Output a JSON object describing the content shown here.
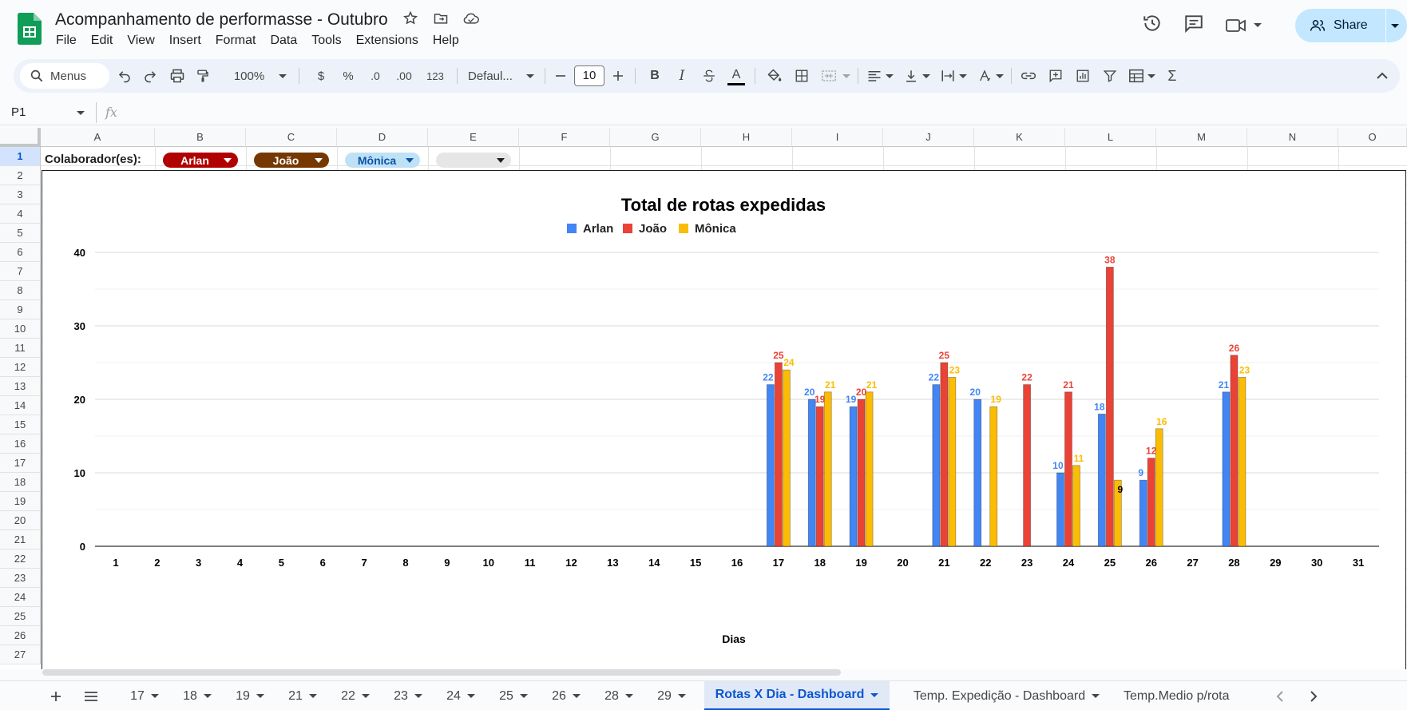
{
  "app": {
    "title": "Acompanhamento de performasse - Outubro",
    "menu": [
      "File",
      "Edit",
      "View",
      "Insert",
      "Format",
      "Data",
      "Tools",
      "Extensions",
      "Help"
    ],
    "share_label": "Share"
  },
  "toolbar": {
    "search_label": "Menus",
    "zoom": "100%",
    "currency": "$",
    "percent": "%",
    "dec_decrease": ".0",
    "dec_increase": ".00",
    "number_format": "123",
    "font": "Defaul...",
    "font_size": "10",
    "bold": "B",
    "italic": "I",
    "text_color_letter": "A",
    "sigma": "Σ"
  },
  "formula_bar": {
    "cell_ref": "P1",
    "fx": "fx"
  },
  "grid": {
    "columns": [
      "A",
      "B",
      "C",
      "D",
      "E",
      "F",
      "G",
      "H",
      "I",
      "J",
      "K",
      "L",
      "M",
      "N",
      "O"
    ],
    "rows": [
      "1",
      "2",
      "3",
      "4",
      "5",
      "6",
      "7",
      "8",
      "9",
      "10",
      "11",
      "12",
      "13",
      "14",
      "15",
      "16",
      "17",
      "18",
      "19",
      "20",
      "21",
      "22",
      "23",
      "24",
      "25",
      "26",
      "27"
    ],
    "collaborator_label": "Colaborador(es):",
    "chips": [
      {
        "label": "Arlan",
        "bg": "#b10202",
        "fg": "#ffffff"
      },
      {
        "label": "João",
        "bg": "#753800",
        "fg": "#ffffff"
      },
      {
        "label": "Mônica",
        "bg": "#bfe1f6",
        "fg": "#0a53a8"
      },
      {
        "label": "",
        "bg": "#e6e6e6",
        "fg": "#1f1f1f"
      }
    ]
  },
  "chart_data": {
    "type": "bar",
    "title": "Total de rotas expedidas",
    "xlabel": "Dias",
    "ylabel": "",
    "ylim": [
      0,
      40
    ],
    "yticks": [
      0,
      10,
      20,
      30,
      40
    ],
    "legend_position": "top-center",
    "grid": true,
    "categories": [
      "1",
      "2",
      "3",
      "4",
      "5",
      "6",
      "7",
      "8",
      "9",
      "10",
      "11",
      "12",
      "13",
      "14",
      "15",
      "16",
      "17",
      "18",
      "19",
      "20",
      "21",
      "22",
      "23",
      "24",
      "25",
      "26",
      "27",
      "28",
      "29",
      "30",
      "31"
    ],
    "series": [
      {
        "name": "Arlan",
        "color": "#4285f4",
        "values": [
          0,
          0,
          0,
          0,
          0,
          0,
          0,
          0,
          0,
          0,
          0,
          0,
          0,
          0,
          0,
          0,
          22,
          20,
          19,
          0,
          22,
          20,
          0,
          10,
          18,
          9,
          0,
          21,
          0,
          0,
          0
        ]
      },
      {
        "name": "João",
        "color": "#ea4335",
        "values": [
          0,
          0,
          0,
          0,
          0,
          0,
          0,
          0,
          0,
          0,
          0,
          0,
          0,
          0,
          0,
          0,
          25,
          19,
          20,
          0,
          25,
          0,
          22,
          21,
          38,
          12,
          0,
          26,
          0,
          0,
          0
        ]
      },
      {
        "name": "Mônica",
        "color": "#fbbc04",
        "values": [
          0,
          0,
          0,
          0,
          0,
          0,
          0,
          0,
          0,
          0,
          0,
          0,
          0,
          0,
          0,
          0,
          24,
          21,
          21,
          0,
          23,
          19,
          0,
          11,
          9,
          16,
          0,
          23,
          0,
          0,
          0
        ]
      }
    ]
  },
  "sheet_tabs": {
    "tabs": [
      "17",
      "18",
      "19",
      "21",
      "22",
      "23",
      "24",
      "25",
      "26",
      "28",
      "29",
      "Rotas X Dia - Dashboard",
      "Temp. Expedição - Dashboard",
      "Temp.Medio p/rota"
    ],
    "active": "Rotas X Dia - Dashboard"
  }
}
